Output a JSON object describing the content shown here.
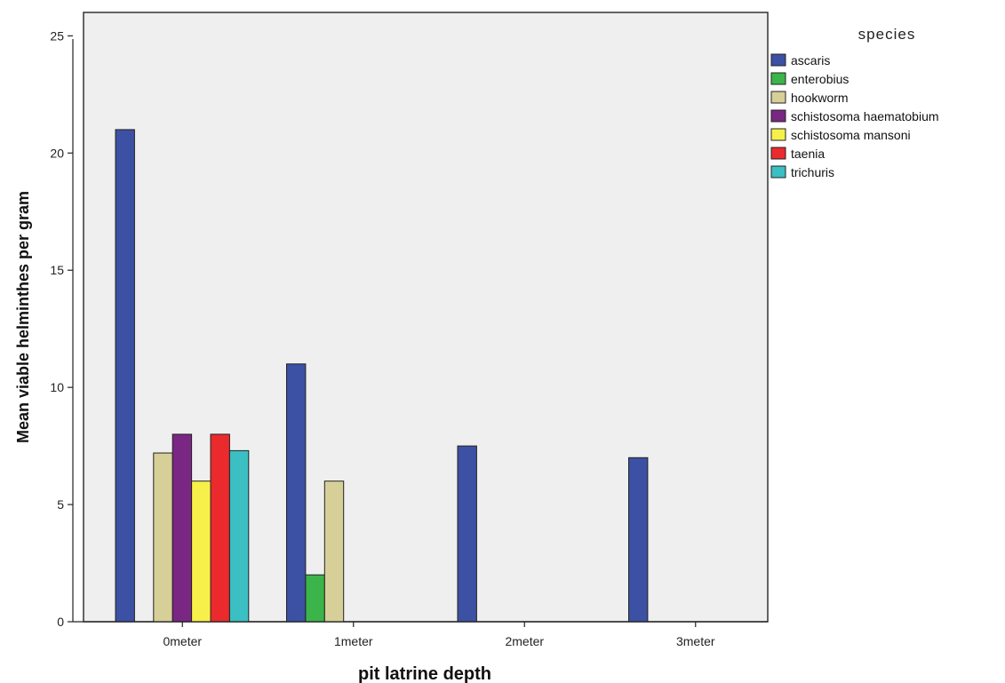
{
  "chart_data": {
    "type": "bar",
    "xlabel": "pit latrine depth",
    "ylabel": "Mean viable helminthes  per gram",
    "categories": [
      "0meter",
      "1meter",
      "2meter",
      "3meter"
    ],
    "ylim": [
      0,
      26
    ],
    "yticks": [
      0,
      5,
      10,
      15,
      20,
      25
    ],
    "grid": false,
    "legend": {
      "title": "species",
      "position": "right"
    },
    "series": [
      {
        "name": "ascaris",
        "color": "#3c51a3",
        "values": [
          21,
          11,
          7.5,
          7
        ]
      },
      {
        "name": "enterobius",
        "color": "#3bb54a",
        "values": [
          null,
          2,
          null,
          null
        ]
      },
      {
        "name": "hookworm",
        "color": "#d6cf98",
        "values": [
          7.2,
          6,
          null,
          null
        ]
      },
      {
        "name": "schistosoma haematobium",
        "color": "#7a2783",
        "values": [
          8,
          null,
          null,
          null
        ]
      },
      {
        "name": "schistosoma mansoni",
        "color": "#f7f04a",
        "values": [
          6,
          null,
          null,
          null
        ]
      },
      {
        "name": "taenia",
        "color": "#eb2a2e",
        "values": [
          8,
          null,
          null,
          null
        ]
      },
      {
        "name": "trichuris",
        "color": "#3bbfc2",
        "values": [
          7.3,
          null,
          null,
          null
        ]
      }
    ],
    "colors": {
      "plot_background": "#efefef",
      "bar_outline": "#222222"
    }
  }
}
